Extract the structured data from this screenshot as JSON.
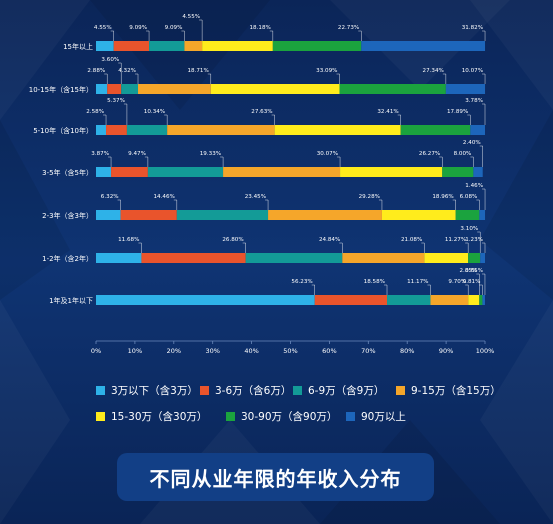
{
  "chart_data": {
    "type": "bar",
    "orientation": "horizontal",
    "stacked": true,
    "title": "不同从业年限的年收入分布",
    "xlabel": "",
    "ylabel": "",
    "xlim": [
      0,
      100
    ],
    "x_ticks": [
      "0%",
      "10%",
      "20%",
      "30%",
      "40%",
      "50%",
      "60%",
      "70%",
      "80%",
      "90%",
      "100%"
    ],
    "categories": [
      "15年以上",
      "10-15年（含15年）",
      "5-10年（含10年）",
      "3-5年（含5年）",
      "2-3年（含3年）",
      "1-2年（含2年）",
      "1年及1年以下"
    ],
    "series": [
      {
        "name": "3万以下（含3万）",
        "color": "#2eb2e8",
        "values": [
          4.55,
          2.88,
          2.58,
          3.87,
          6.32,
          11.68,
          56.23
        ]
      },
      {
        "name": "3-6万（含6万）",
        "color": "#e9542c",
        "values": [
          9.09,
          3.6,
          5.37,
          9.47,
          14.46,
          26.8,
          18.58
        ]
      },
      {
        "name": "6-9万（含9万）",
        "color": "#139b97",
        "values": [
          9.09,
          4.32,
          10.34,
          19.33,
          23.45,
          24.84,
          11.17
        ]
      },
      {
        "name": "9-15万（含15万）",
        "color": "#f5a62a",
        "values": [
          4.55,
          18.71,
          27.63,
          30.07,
          29.28,
          21.08,
          9.7
        ]
      },
      {
        "name": "15-30万（含30万）",
        "color": "#ffec1c",
        "values": [
          18.18,
          33.09,
          32.41,
          26.27,
          18.96,
          11.27,
          2.85
        ]
      },
      {
        "name": "30-90万（含90万）",
        "color": "#1ba33e",
        "values": [
          22.73,
          27.34,
          17.89,
          8.0,
          6.08,
          3.1,
          0.81
        ]
      },
      {
        "name": "90万以上",
        "color": "#1d66bb",
        "values": [
          31.82,
          10.07,
          3.78,
          2.4,
          1.46,
          1.23,
          0.65
        ]
      }
    ],
    "grid": false,
    "legend_position": "bottom"
  }
}
